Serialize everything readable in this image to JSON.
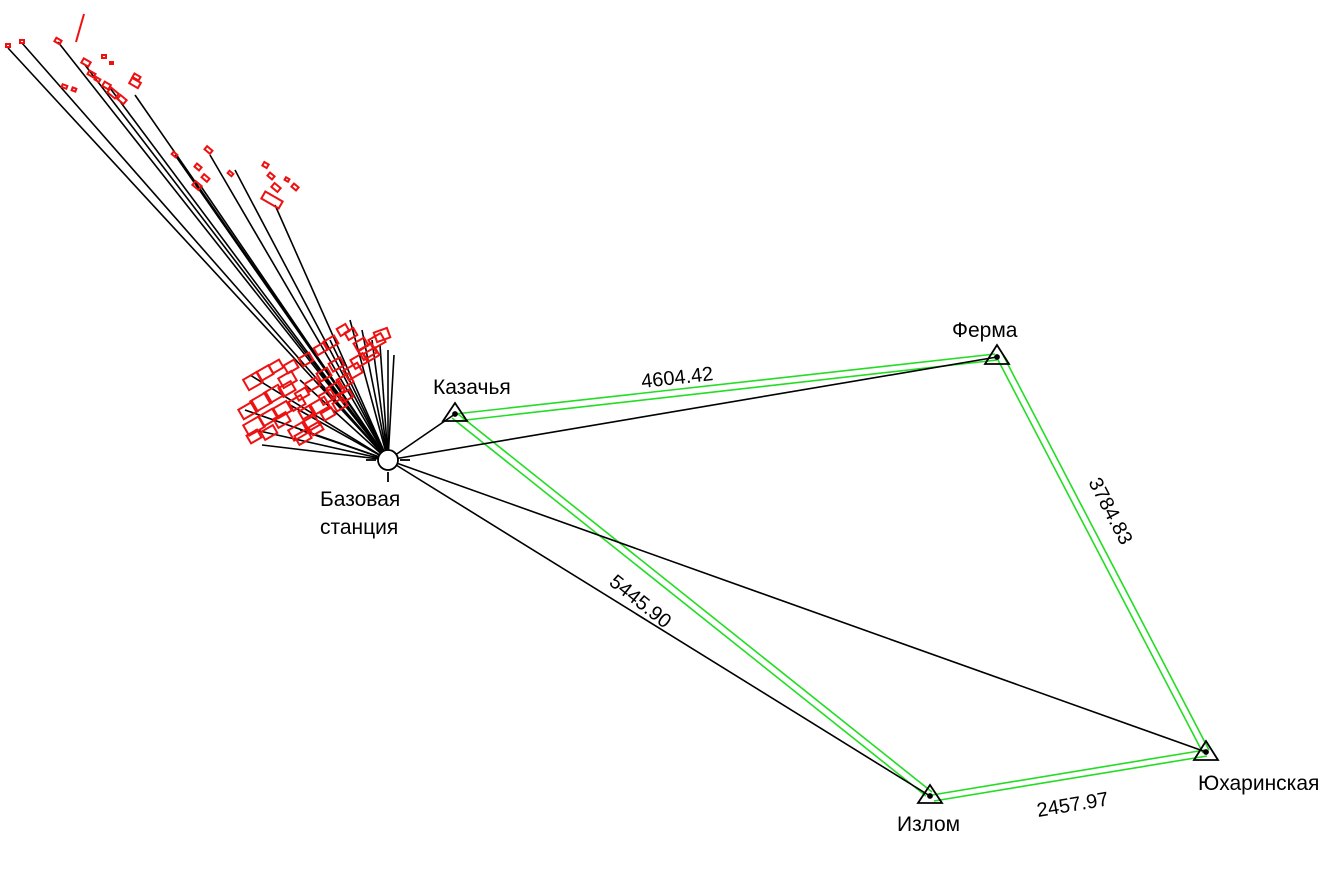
{
  "colors": {
    "background": "#ffffff",
    "baseline": "#000000",
    "network_link": "#22dd22",
    "building": "#ee1111"
  },
  "icons": {
    "base_station": "circle-crosshair-icon",
    "control_point": "triangle-icon"
  },
  "base_station": {
    "label_line1": "Базовая",
    "label_line2": "станция"
  },
  "points": {
    "kazachya": "Казачья",
    "ferma": "Ферма",
    "yukharinskaya": "Юхаринская",
    "izlom": "Излом"
  },
  "distances": {
    "kazachya_ferma": "4604.42",
    "ferma_yukharinskaya": "3784.83",
    "yukharinskaya_izlom": "2457.97",
    "base_izlom": "5445.90"
  }
}
